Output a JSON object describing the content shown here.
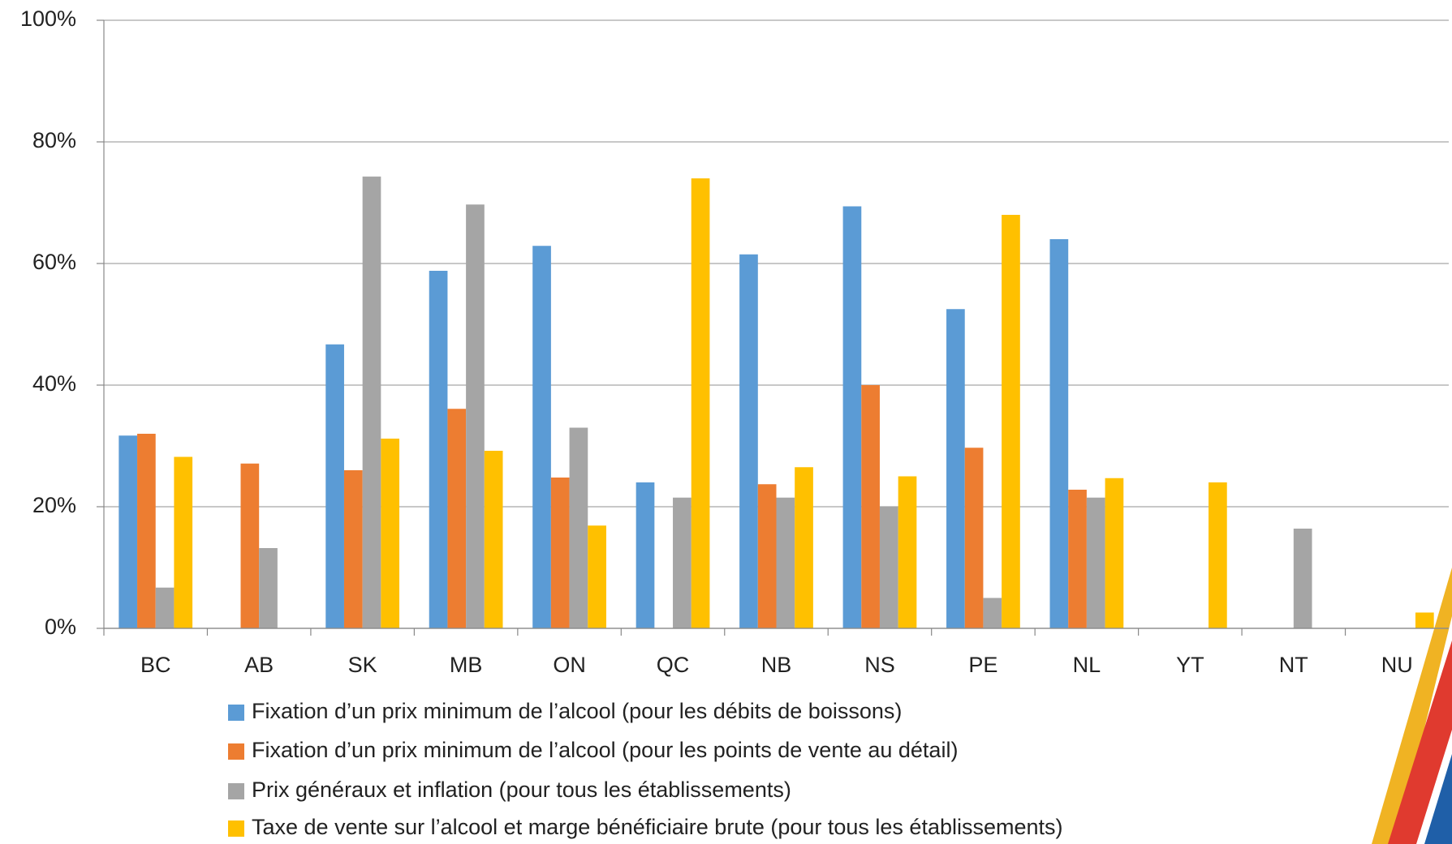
{
  "chart_data": {
    "type": "bar",
    "categories": [
      "BC",
      "AB",
      "SK",
      "MB",
      "ON",
      "QC",
      "NB",
      "NS",
      "PE",
      "NL",
      "YT",
      "NT",
      "NU"
    ],
    "series": [
      {
        "name": "Fixation d’un prix minimum de l’alcool (pour les débits de boissons)",
        "color": "#5b9bd5",
        "values": [
          31.7,
          0,
          46.7,
          58.8,
          62.9,
          24,
          61.5,
          69.4,
          52.5,
          64,
          0,
          0,
          0
        ]
      },
      {
        "name": "Fixation d’un prix minimum de l’alcool (pour les points de vente au détail)",
        "color": "#ed7d31",
        "values": [
          32,
          27.1,
          26,
          36.1,
          24.8,
          0,
          23.7,
          40,
          29.7,
          22.8,
          0,
          0,
          0
        ]
      },
      {
        "name": "Prix généraux et inflation (pour tous les établissements)",
        "color": "#a5a5a5",
        "values": [
          6.7,
          13.2,
          74.3,
          69.7,
          33,
          21.5,
          21.5,
          20,
          5,
          21.5,
          0,
          16.4,
          0
        ]
      },
      {
        "name": "Taxe de vente sur l’alcool et marge bénéficiaire brute (pour tous les établissements)",
        "color": "#ffc000",
        "values": [
          28.2,
          0,
          31.2,
          29.2,
          16.9,
          74,
          26.5,
          25,
          68,
          24.7,
          24,
          0,
          2.6
        ]
      }
    ],
    "ylim": [
      0,
      100
    ],
    "yticks": [
      {
        "value": 0,
        "label": "0%"
      },
      {
        "value": 20,
        "label": "20%"
      },
      {
        "value": 40,
        "label": "40%"
      },
      {
        "value": 60,
        "label": "60%"
      },
      {
        "value": 80,
        "label": "80%"
      },
      {
        "value": 100,
        "label": "100%"
      }
    ],
    "grid": true
  }
}
